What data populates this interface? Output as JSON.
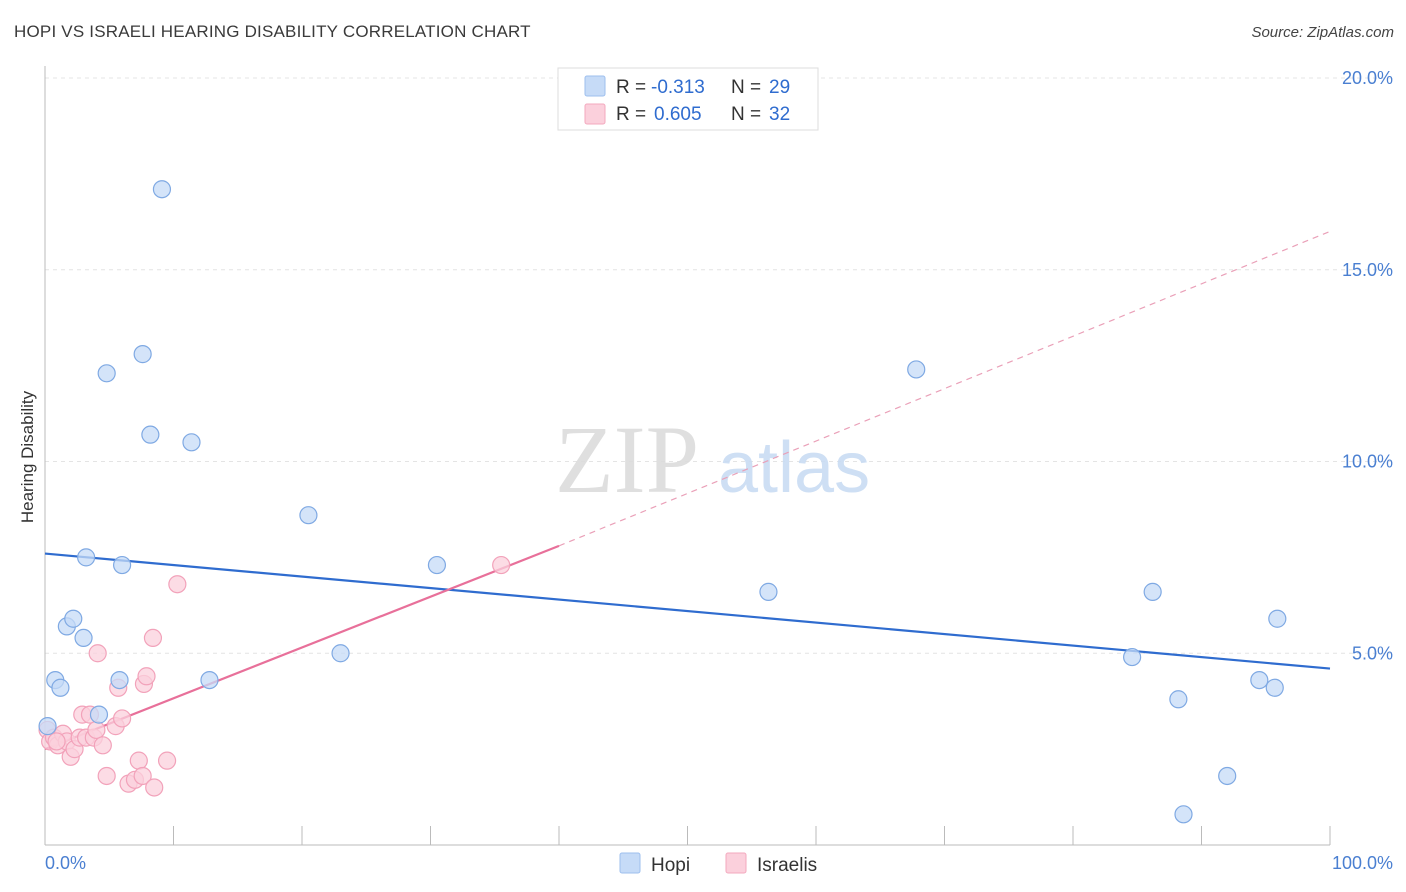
{
  "title": "HOPI VS ISRAELI HEARING DISABILITY CORRELATION CHART",
  "source": "Source: ZipAtlas.com",
  "watermark": {
    "zip": "ZIP",
    "atlas": "atlas"
  },
  "legend": {
    "r_label": "R =",
    "n_label": "N =",
    "rows": [
      {
        "name": "Hopi",
        "r": "-0.313",
        "n": "29",
        "color": "#9dbfee",
        "fill": "#c6dbf7"
      },
      {
        "name": "Israelis",
        "r": "0.605",
        "n": "32",
        "color": "#f3a9be",
        "fill": "#fbd0dc"
      }
    ]
  },
  "chart_data": {
    "type": "scatter",
    "title": "HOPI VS ISRAELI HEARING DISABILITY CORRELATION CHART",
    "xlabel": "",
    "ylabel": "Hearing Disability",
    "xlim": [
      0,
      100
    ],
    "ylim": [
      0,
      20
    ],
    "x_tick_labels": [
      "0.0%",
      "100.0%"
    ],
    "y_ticks": [
      5,
      10,
      15,
      20
    ],
    "y_tick_labels": [
      "5.0%",
      "10.0%",
      "15.0%",
      "20.0%"
    ],
    "series": [
      {
        "name": "Hopi",
        "color": "#2f6ccf",
        "point_fill": "#c6dbf7",
        "point_stroke": "#7fa9e3",
        "points": [
          [
            0.8,
            4.3
          ],
          [
            1.2,
            4.1
          ],
          [
            1.7,
            5.7
          ],
          [
            2.2,
            5.9
          ],
          [
            3.0,
            5.4
          ],
          [
            3.2,
            7.5
          ],
          [
            4.2,
            3.4
          ],
          [
            4.8,
            12.3
          ],
          [
            5.8,
            4.3
          ],
          [
            6.0,
            7.3
          ],
          [
            7.6,
            12.8
          ],
          [
            8.2,
            10.7
          ],
          [
            9.1,
            17.1
          ],
          [
            11.4,
            10.5
          ],
          [
            12.8,
            4.3
          ],
          [
            20.5,
            8.6
          ],
          [
            23.0,
            5.0
          ],
          [
            30.5,
            7.3
          ],
          [
            56.3,
            6.6
          ],
          [
            67.8,
            12.4
          ],
          [
            84.6,
            4.9
          ],
          [
            86.2,
            6.6
          ],
          [
            88.2,
            3.8
          ],
          [
            88.6,
            0.8
          ],
          [
            92.0,
            1.8
          ],
          [
            94.5,
            4.3
          ],
          [
            95.7,
            4.1
          ],
          [
            95.9,
            5.9
          ],
          [
            0.2,
            3.1
          ]
        ],
        "trend": {
          "x0": 0,
          "y0": 7.6,
          "x1": 100,
          "y1": 4.6,
          "style": "solid"
        }
      },
      {
        "name": "Israelis",
        "color": "#e8709a",
        "point_fill": "#fbd0dc",
        "point_stroke": "#f2a2ba",
        "points": [
          [
            0.2,
            3.0
          ],
          [
            0.4,
            2.7
          ],
          [
            0.7,
            2.8
          ],
          [
            1.0,
            2.6
          ],
          [
            1.4,
            2.9
          ],
          [
            1.7,
            2.7
          ],
          [
            2.0,
            2.3
          ],
          [
            2.3,
            2.5
          ],
          [
            2.7,
            2.8
          ],
          [
            2.9,
            3.4
          ],
          [
            3.2,
            2.8
          ],
          [
            3.5,
            3.4
          ],
          [
            3.8,
            2.8
          ],
          [
            4.0,
            3.0
          ],
          [
            4.5,
            2.6
          ],
          [
            4.8,
            1.8
          ],
          [
            4.1,
            5.0
          ],
          [
            5.7,
            4.1
          ],
          [
            5.5,
            3.1
          ],
          [
            6.0,
            3.3
          ],
          [
            6.5,
            1.6
          ],
          [
            7.0,
            1.7
          ],
          [
            7.3,
            2.2
          ],
          [
            7.6,
            1.8
          ],
          [
            7.7,
            4.2
          ],
          [
            7.9,
            4.4
          ],
          [
            8.4,
            5.4
          ],
          [
            8.5,
            1.5
          ],
          [
            9.5,
            2.2
          ],
          [
            10.3,
            6.8
          ],
          [
            35.5,
            7.3
          ],
          [
            0.9,
            2.7
          ]
        ],
        "trend": {
          "x0": 0,
          "y0": 2.5,
          "x1": 40,
          "y1": 7.8,
          "dashed_x1": 100,
          "dashed_y1": 16.0
        }
      }
    ]
  }
}
